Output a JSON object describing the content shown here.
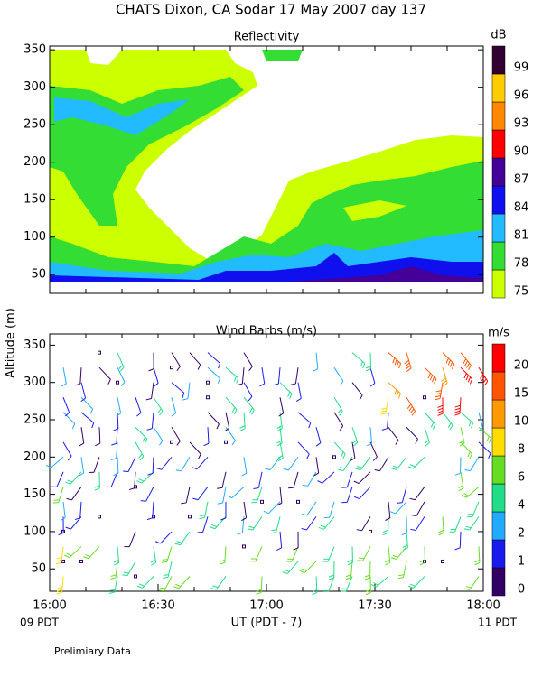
{
  "title": "CHATS Dixon, CA  Sodar  17 May 2007  day 137",
  "notes": {
    "left_time": "09 PDT",
    "right_time": "11 PDT",
    "footer": "Prelimiary Data"
  },
  "chart_data": [
    {
      "type": "contour",
      "title": "Reflectivity",
      "xlim": [
        960,
        1080
      ],
      "ylim": [
        25,
        355
      ],
      "yticks": [
        50,
        100,
        150,
        200,
        250,
        300,
        350
      ],
      "colorbar": {
        "label": "dB",
        "levels": [
          75,
          78,
          81,
          84,
          87,
          90,
          93,
          96,
          99
        ],
        "colors": [
          "#ccff00",
          "#33dd33",
          "#22bbff",
          "#1010ee",
          "#440099",
          "#ff0000",
          "#ff8800",
          "#ffcc00",
          "#330033"
        ]
      }
    },
    {
      "type": "barbs",
      "title": "Wind Barbs (m/s)",
      "ylabel": "Altitude (m)",
      "xlabel": "UT  (PDT - 7)",
      "xlim": [
        960,
        1080
      ],
      "ylim": [
        20,
        365
      ],
      "xticks": [
        {
          "value": 960,
          "label": "16:00"
        },
        {
          "value": 990,
          "label": "16:30"
        },
        {
          "value": 1020,
          "label": "17:00"
        },
        {
          "value": 1050,
          "label": "17:30"
        },
        {
          "value": 1080,
          "label": "18:00"
        }
      ],
      "yticks": [
        50,
        100,
        150,
        200,
        250,
        300,
        350
      ],
      "colorbar": {
        "label": "m/s",
        "levels": [
          0,
          1,
          2,
          4,
          6,
          8,
          10,
          15,
          20
        ],
        "colors": [
          "#330066",
          "#1a1aee",
          "#22aaff",
          "#22dd88",
          "#66dd22",
          "#ffdd00",
          "#ff9900",
          "#ff5500",
          "#ff0000"
        ]
      }
    }
  ]
}
